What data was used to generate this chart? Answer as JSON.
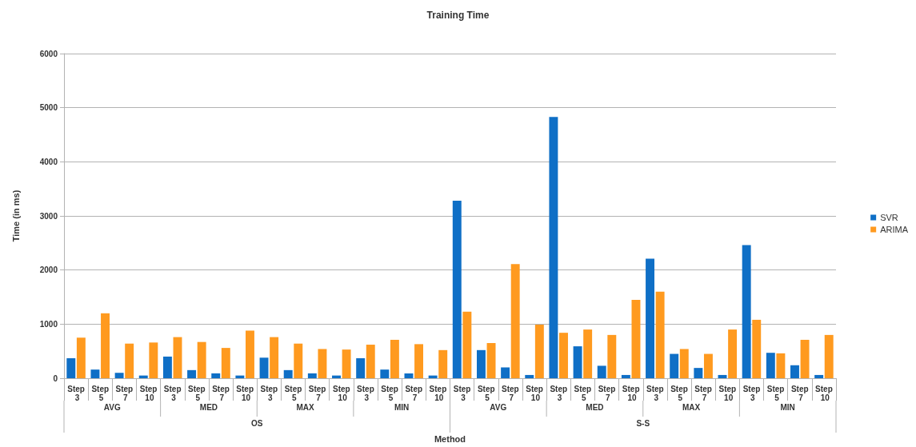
{
  "chart_data": {
    "type": "bar",
    "title": "Training Time",
    "xlabel": "Method",
    "ylabel": "Time (in ms)",
    "categories": [
      "Step 3",
      "Step 5",
      "Step 7",
      "Step 10",
      "Step 3",
      "Step 5",
      "Step 7",
      "Step 10",
      "Step 3",
      "Step 5",
      "Step 7",
      "Step 10",
      "Step 3",
      "Step 5",
      "Step 7",
      "Step 10",
      "Step 3",
      "Step 5",
      "Step 7",
      "Step 10",
      "Step 3",
      "Step 5",
      "Step 7",
      "Step 10",
      "Step 3",
      "Step 5",
      "Step 7",
      "Step 10",
      "Step 3",
      "Step 5",
      "Step 7",
      "Step 10"
    ],
    "series": [
      {
        "name": "SVR",
        "color": "#0f6fc6",
        "values": [
          370,
          160,
          100,
          50,
          400,
          150,
          90,
          50,
          380,
          150,
          90,
          50,
          370,
          160,
          90,
          50,
          3280,
          520,
          200,
          60,
          4830,
          590,
          230,
          60,
          2210,
          450,
          190,
          60,
          2460,
          470,
          240,
          60
        ]
      },
      {
        "name": "ARIMA",
        "color": "#ff9a1f",
        "values": [
          750,
          1200,
          640,
          660,
          760,
          670,
          560,
          880,
          760,
          640,
          540,
          530,
          620,
          710,
          630,
          520,
          1230,
          650,
          2110,
          990,
          840,
          900,
          800,
          1450,
          1600,
          540,
          450,
          900,
          1080,
          460,
          710,
          800
        ]
      }
    ],
    "annotations": [
      "AVG",
      "MED",
      "MAX",
      "MIN",
      "AVG",
      "MED",
      "MAX",
      "MIN",
      "OS",
      "S-S"
    ],
    "ylim": [
      0,
      6000
    ],
    "yticks": [
      0,
      1000,
      2000,
      3000,
      4000,
      5000,
      6000
    ],
    "grid": "y",
    "legend": "right"
  }
}
